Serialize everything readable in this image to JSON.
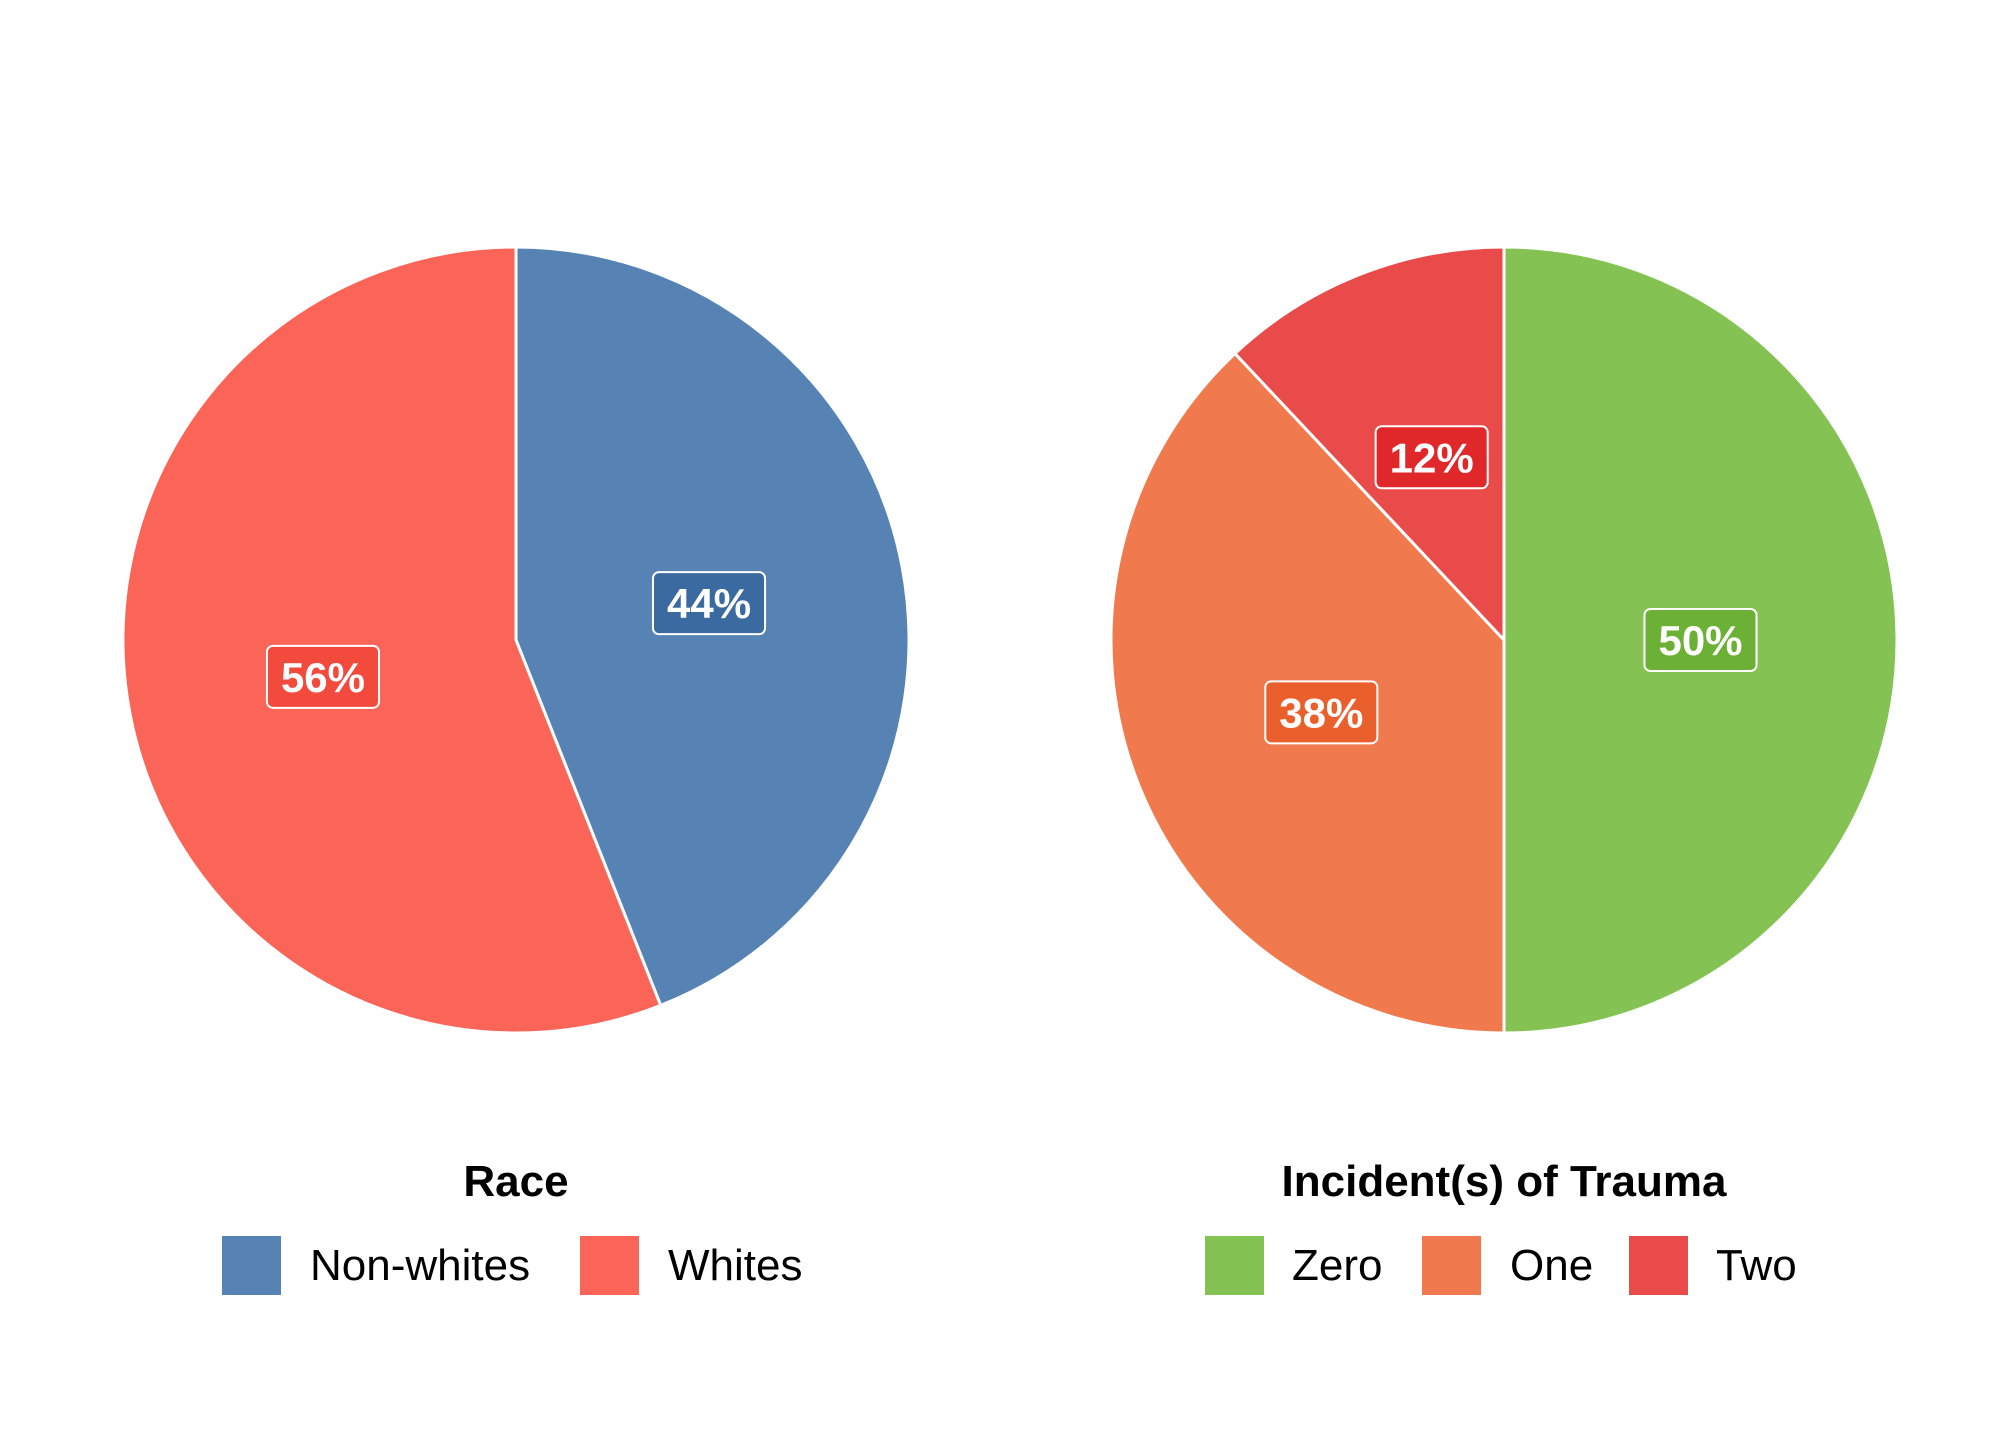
{
  "chart_data": [
    {
      "type": "pie",
      "legend_title": "Race",
      "legend_position": "bottom",
      "slices": [
        {
          "name": "Non-whites",
          "value": 44,
          "label": "44%",
          "color": "#5683b3",
          "label_bg": "#3b6aa0"
        },
        {
          "name": "Whites",
          "value": 56,
          "label": "56%",
          "color": "#fb6558",
          "label_bg": "#f24a3c"
        }
      ]
    },
    {
      "type": "pie",
      "legend_title": "Incident(s) of Trauma",
      "legend_position": "bottom",
      "slices": [
        {
          "name": "Zero",
          "value": 50,
          "label": "50%",
          "color": "#84c253",
          "label_bg": "#6cb136"
        },
        {
          "name": "One",
          "value": 38,
          "label": "38%",
          "color": "#f07a4d",
          "label_bg": "#ea602c"
        },
        {
          "name": "Two",
          "value": 12,
          "label": "12%",
          "color": "#e94b4b",
          "label_bg": "#e0282b"
        }
      ]
    }
  ]
}
